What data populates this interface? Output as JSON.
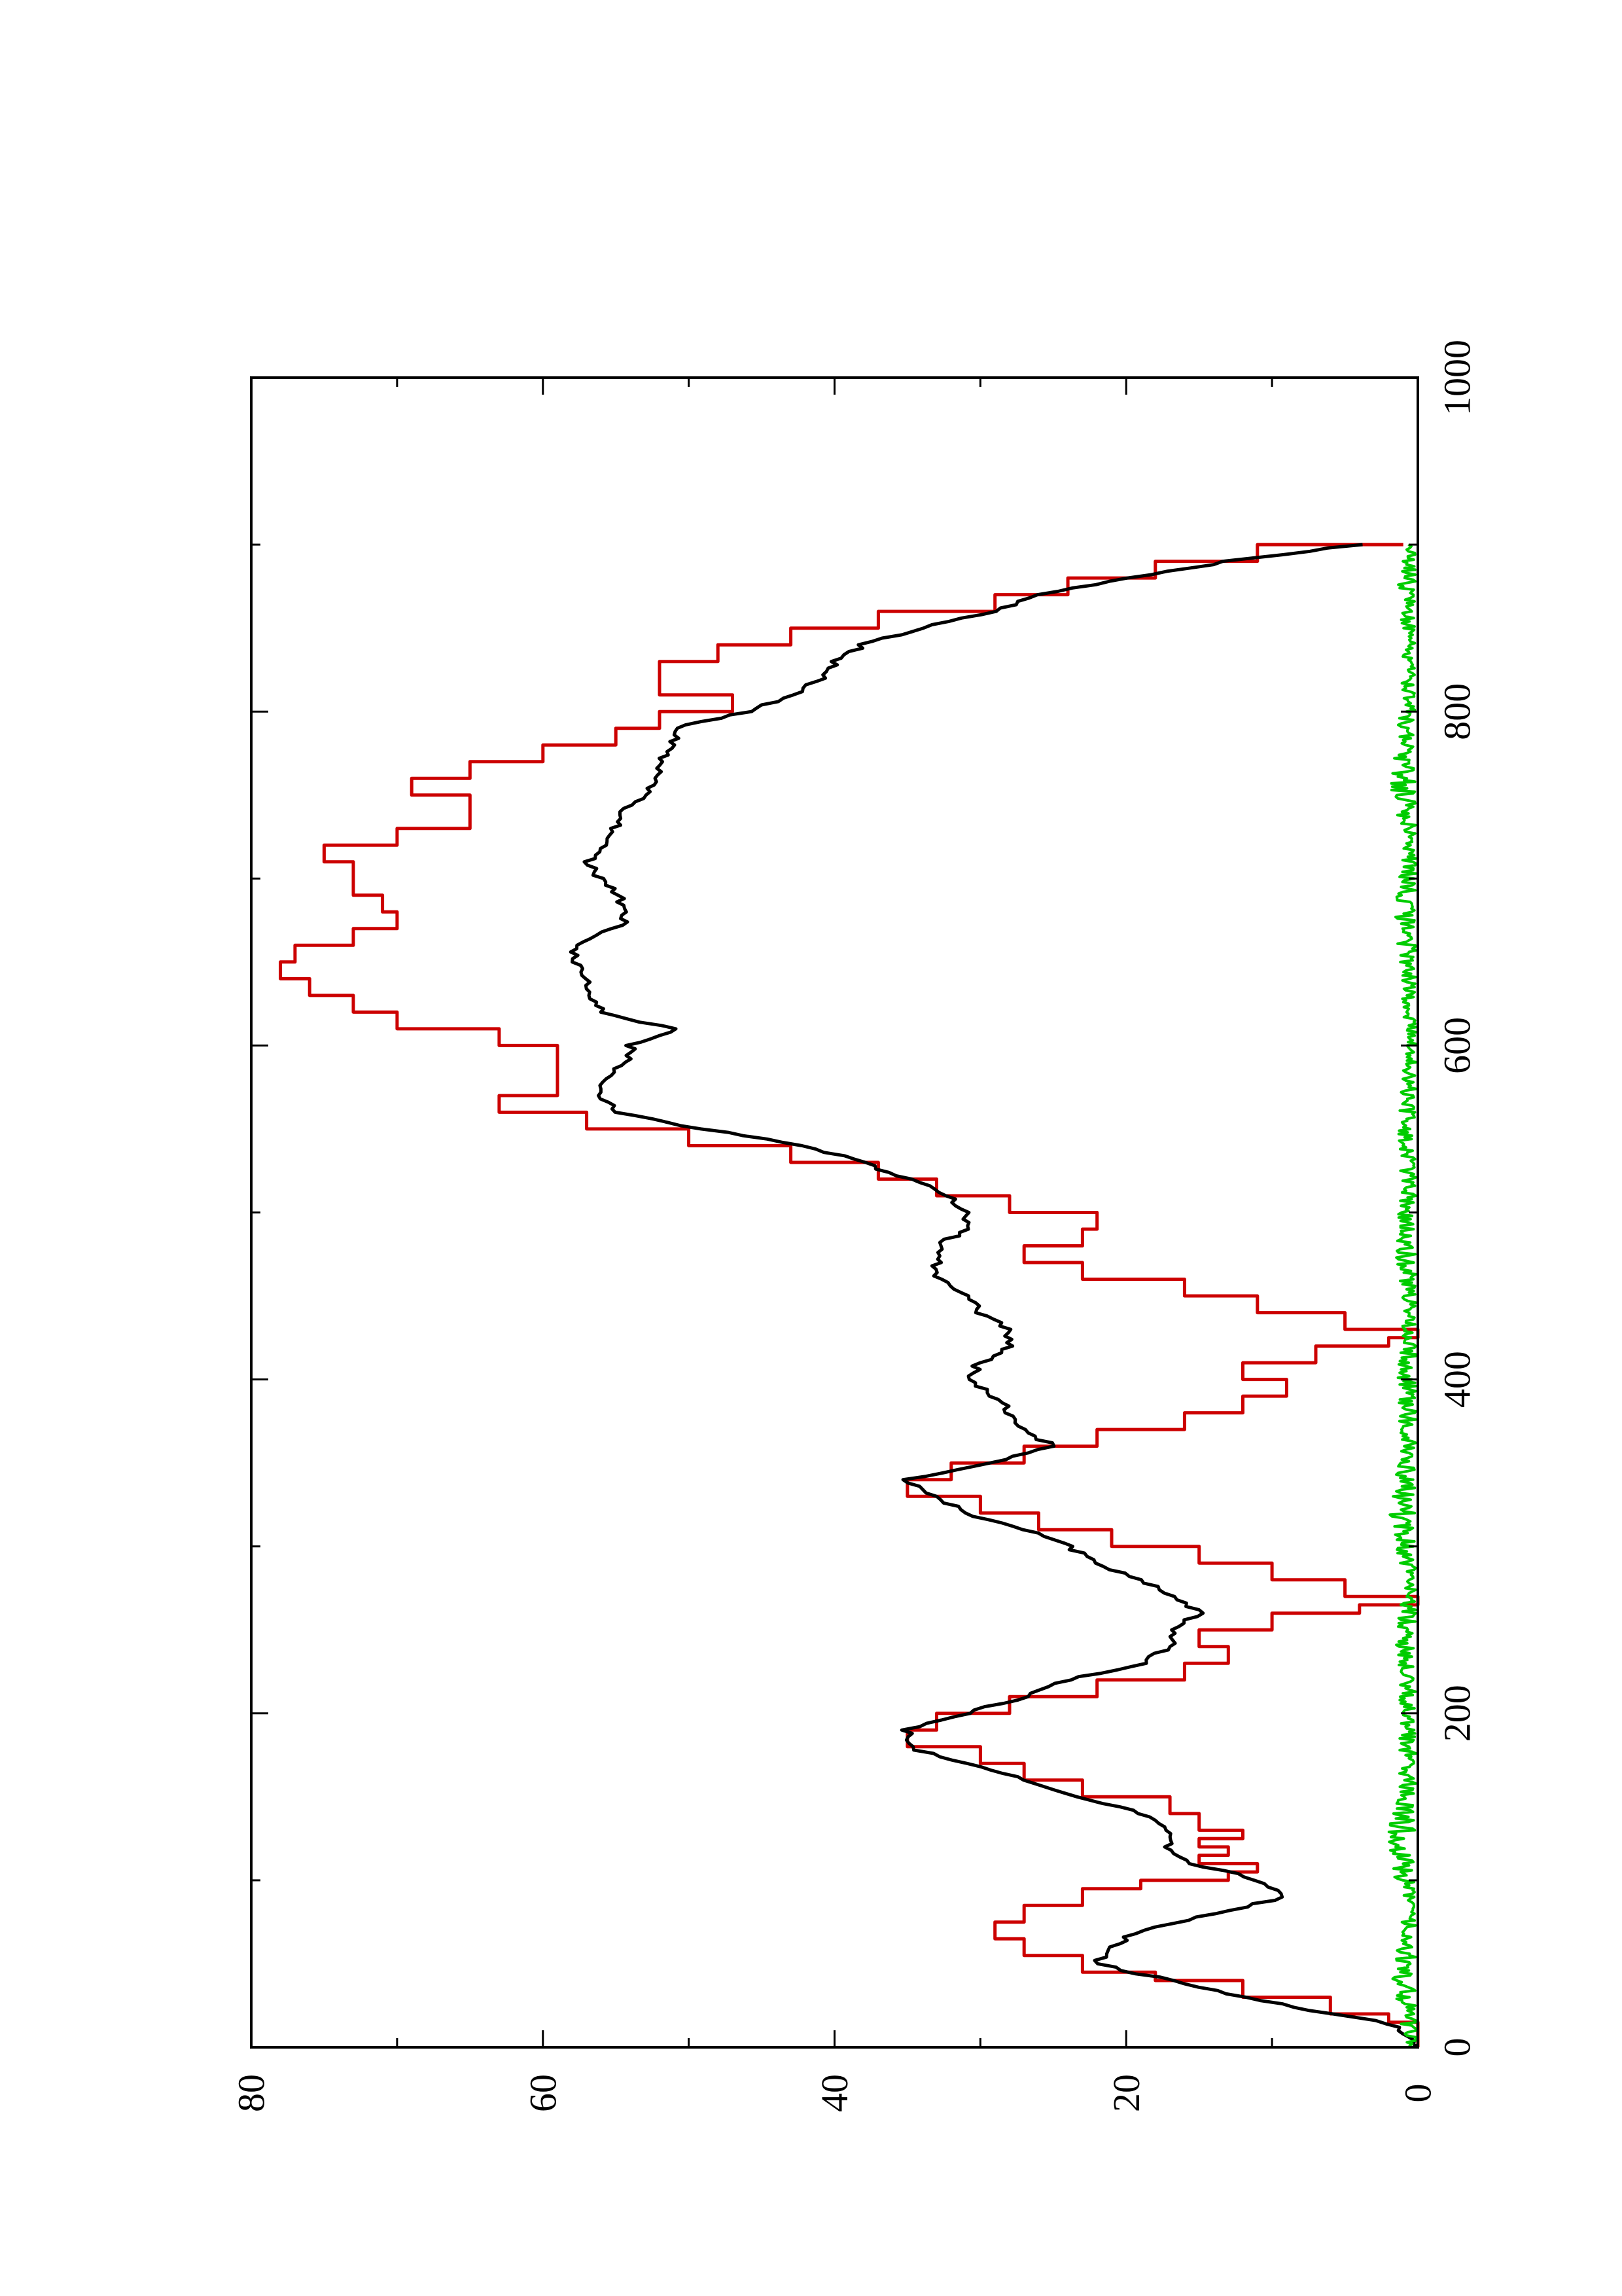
{
  "chart_data": {
    "type": "line",
    "title": "",
    "xlabel": "",
    "ylabel": "",
    "orientation": "rotated-90-clockwise",
    "xlim": [
      0,
      1000
    ],
    "ylim": [
      0,
      80
    ],
    "x_ticks": [
      "0",
      "200",
      "400",
      "600",
      "800",
      "1000"
    ],
    "y_ticks": [
      "0",
      "20",
      "40",
      "60",
      "80"
    ],
    "grid": false,
    "legend": "none",
    "series": [
      {
        "color": "#cc0000",
        "style": "step",
        "x": [
          0,
          15,
          20,
          30,
          40,
          45,
          55,
          65,
          75,
          85,
          95,
          100,
          105,
          110,
          115,
          120,
          125,
          130,
          140,
          150,
          160,
          170,
          180,
          190,
          200,
          210,
          220,
          230,
          240,
          250,
          260,
          265,
          270,
          280,
          290,
          300,
          310,
          320,
          330,
          340,
          350,
          360,
          370,
          380,
          390,
          400,
          410,
          420,
          425,
          430,
          440,
          450,
          460,
          470,
          480,
          490,
          500,
          510,
          520,
          530,
          540,
          550,
          560,
          570,
          580,
          590,
          600,
          610,
          620,
          630,
          640,
          650,
          660,
          670,
          680,
          690,
          700,
          710,
          720,
          730,
          740,
          750,
          760,
          770,
          780,
          790,
          800,
          810,
          820,
          830,
          840,
          850,
          860,
          870,
          880,
          890,
          900
        ],
        "y": [
          0,
          2,
          6,
          12,
          18,
          23,
          27,
          29,
          27,
          23,
          19,
          13,
          11,
          15,
          13,
          15,
          12,
          15,
          17,
          23,
          27,
          30,
          35,
          33,
          28,
          22,
          16,
          13,
          15,
          10,
          4,
          0,
          5,
          10,
          15,
          21,
          26,
          30,
          35,
          32,
          27,
          22,
          16,
          12,
          9,
          12,
          7,
          2,
          0,
          5,
          11,
          16,
          23,
          27,
          23,
          22,
          28,
          33,
          37,
          43,
          50,
          57,
          63,
          59,
          59,
          59,
          63,
          70,
          73,
          76,
          78,
          77,
          73,
          70,
          71,
          73,
          73,
          75,
          70,
          65,
          65,
          69,
          65,
          60,
          55,
          52,
          47,
          52,
          52,
          48,
          43,
          37,
          29,
          24,
          18,
          11,
          1
        ]
      },
      {
        "color": "#000000",
        "style": "line",
        "x": [
          0,
          15,
          20,
          30,
          40,
          50,
          60,
          70,
          80,
          90,
          100,
          105,
          110,
          120,
          130,
          140,
          150,
          160,
          170,
          180,
          190,
          200,
          210,
          220,
          230,
          240,
          250,
          260,
          270,
          280,
          290,
          300,
          310,
          320,
          330,
          340,
          350,
          360,
          370,
          380,
          390,
          400,
          410,
          420,
          430,
          440,
          450,
          460,
          470,
          480,
          490,
          500,
          510,
          520,
          530,
          540,
          550,
          560,
          570,
          580,
          590,
          600,
          610,
          620,
          630,
          640,
          650,
          660,
          670,
          680,
          690,
          700,
          710,
          720,
          730,
          740,
          750,
          760,
          770,
          780,
          790,
          800,
          810,
          820,
          830,
          840,
          850,
          860,
          870,
          880,
          890,
          900
        ],
        "y": [
          0,
          2,
          6,
          12,
          17,
          22,
          21,
          19,
          14,
          9,
          11,
          13,
          16,
          17,
          17,
          19,
          23,
          27,
          31,
          35,
          35,
          31,
          27,
          24,
          19,
          17,
          17,
          15,
          17,
          19,
          22,
          24,
          27,
          31,
          33,
          35,
          29,
          25,
          27,
          28,
          29,
          31,
          30,
          28,
          28,
          30,
          31,
          33,
          33,
          33,
          31,
          31,
          32,
          35,
          38,
          42,
          49,
          55,
          56,
          56,
          54,
          54,
          51,
          56,
          57,
          57,
          58,
          58,
          55,
          54,
          55,
          56,
          57,
          56,
          55,
          55,
          53,
          52,
          52,
          51,
          51,
          46,
          43,
          41,
          40,
          38,
          34,
          29,
          26,
          20,
          13,
          4
        ]
      },
      {
        "color": "#00cc00",
        "style": "noise",
        "x": [
          0,
          40,
          80,
          120,
          160,
          200,
          240,
          280,
          320,
          360,
          400,
          440,
          480,
          520,
          560,
          600,
          640,
          680,
          720,
          760,
          800,
          840,
          880,
          900
        ],
        "y": [
          0.4,
          0.9,
          0.5,
          1.1,
          0.7,
          0.6,
          0.8,
          0.5,
          1.0,
          0.6,
          0.7,
          0.5,
          0.8,
          0.6,
          0.7,
          0.4,
          0.6,
          0.8,
          0.5,
          1.0,
          0.6,
          0.5,
          0.7,
          0.4
        ]
      }
    ]
  }
}
